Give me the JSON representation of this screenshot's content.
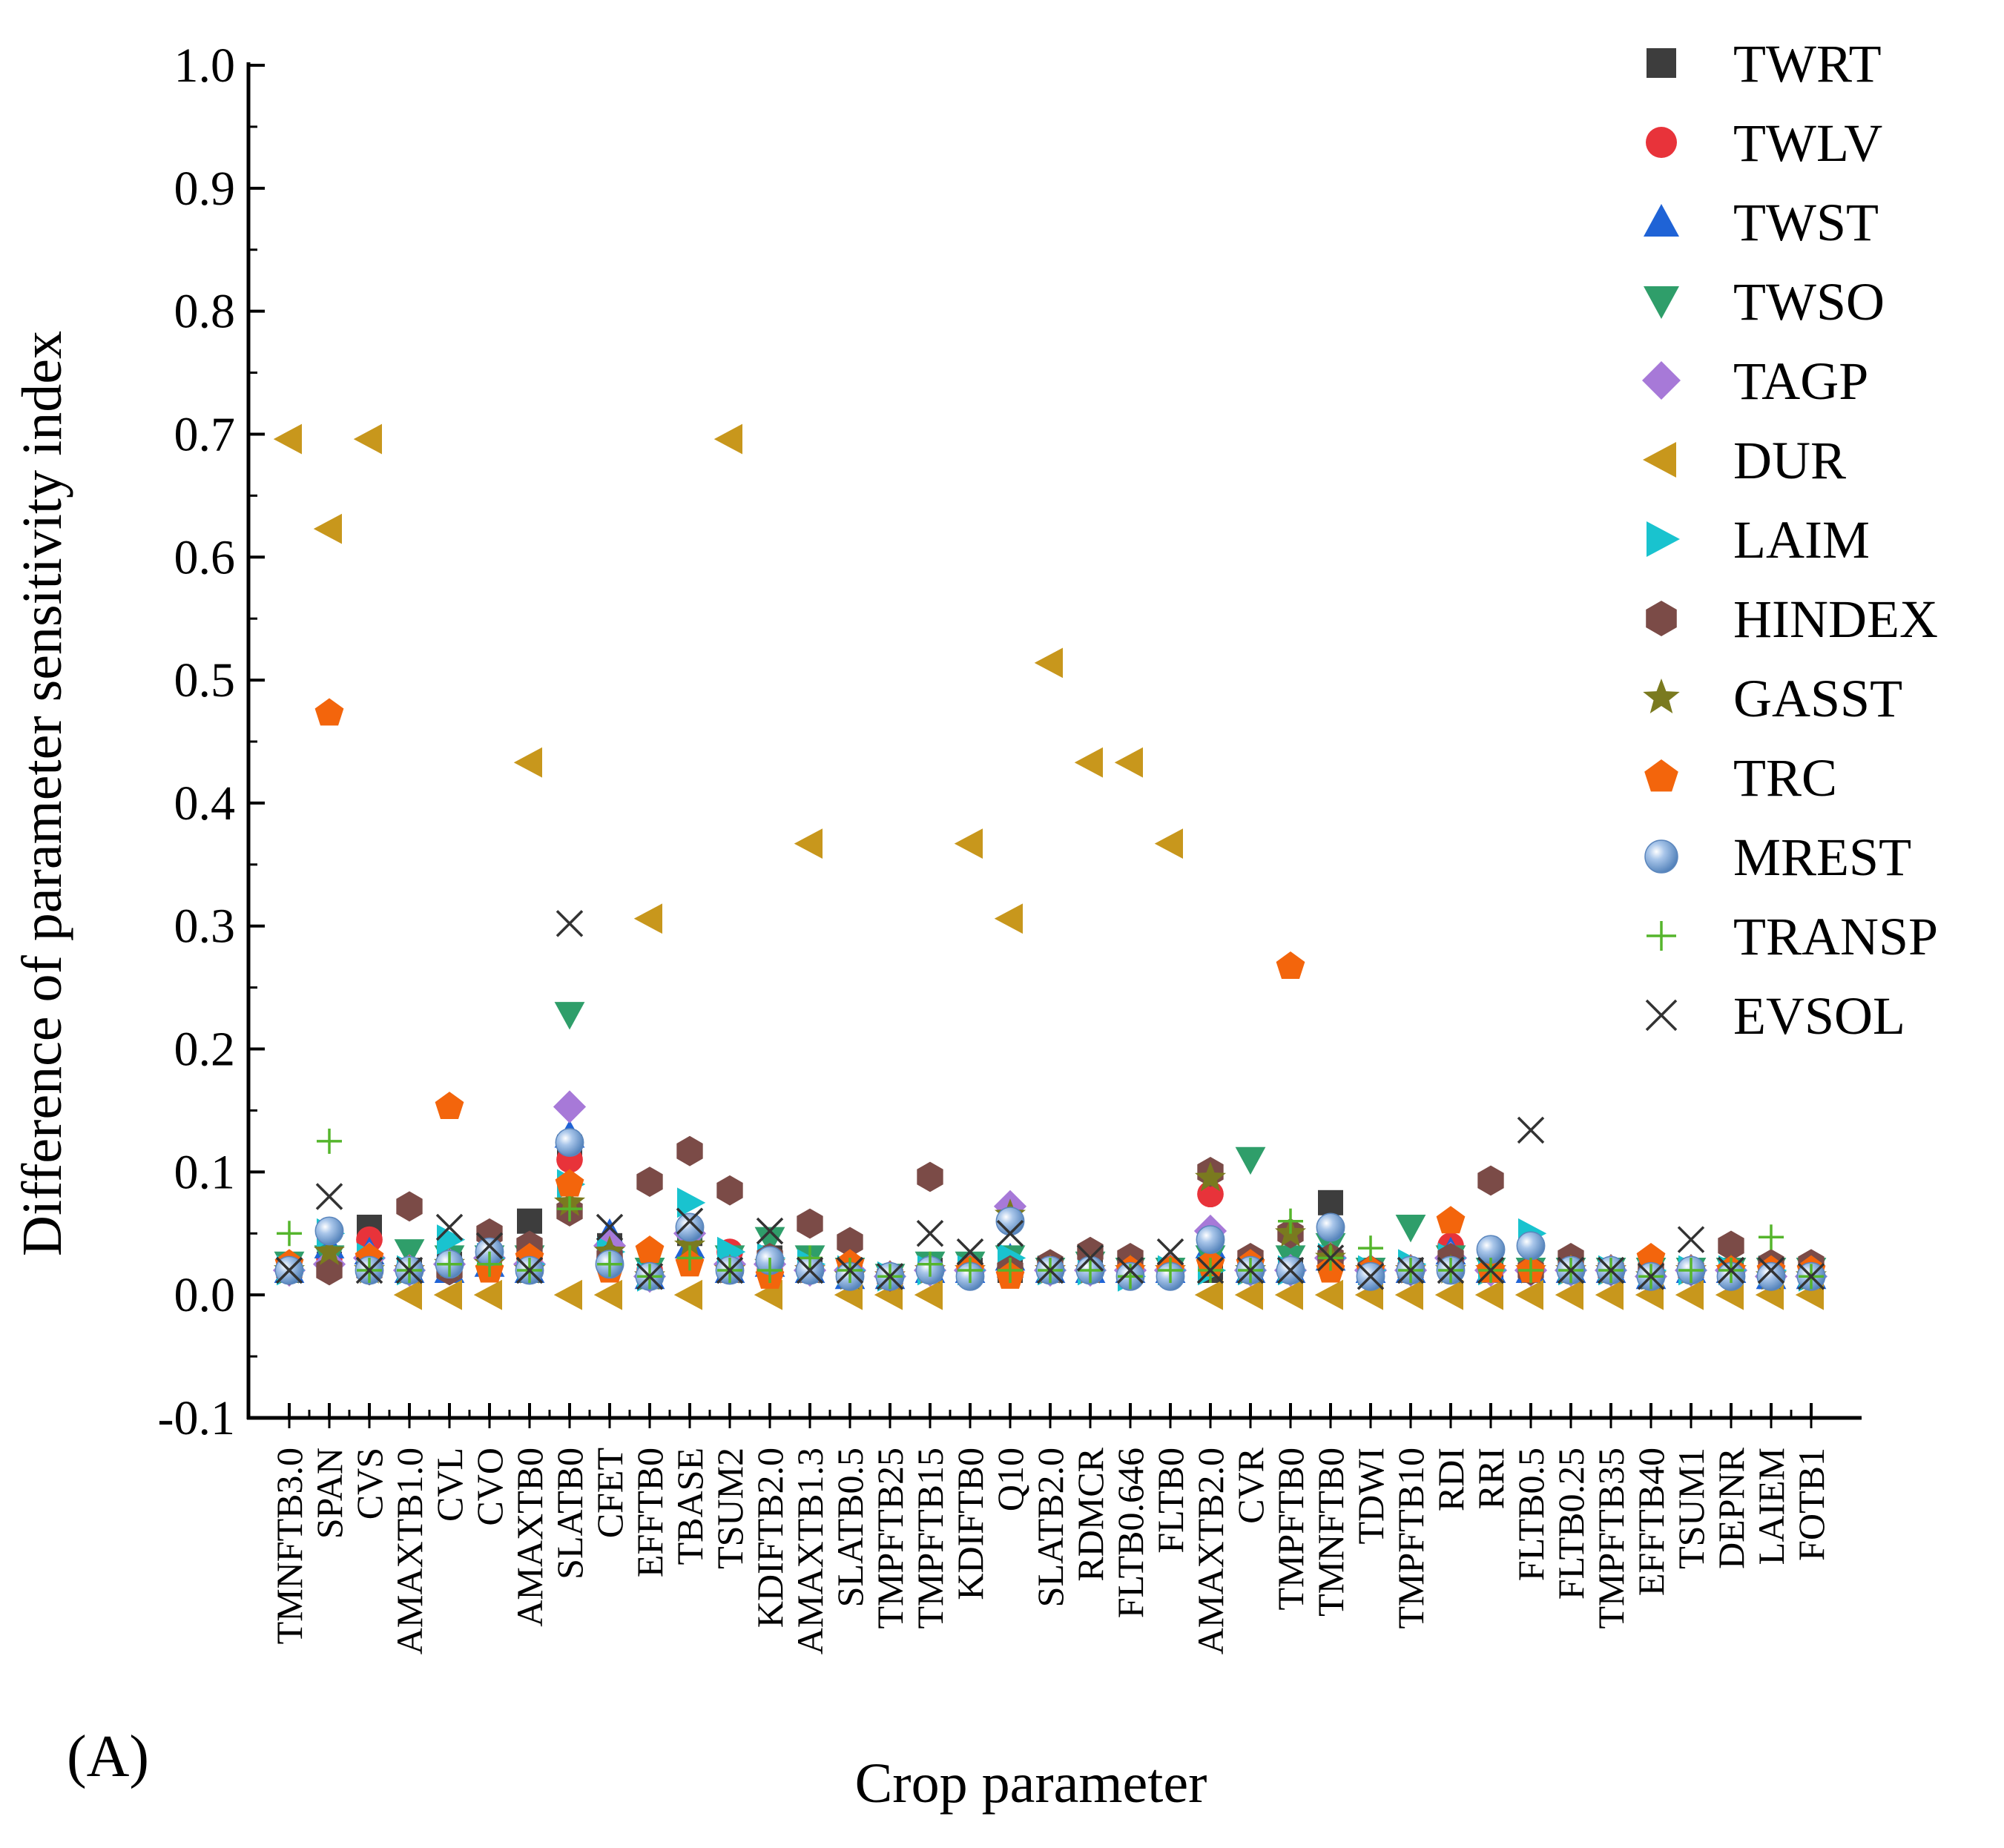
{
  "chart_data": {
    "type": "scatter",
    "xlabel": "Crop parameter",
    "ylabel": "Difference of parameter sensitivity index",
    "panel_label": "(A)",
    "ylim": [
      -0.1,
      1.0
    ],
    "yticks": [
      "-0.1",
      "0.0",
      "0.1",
      "0.2",
      "0.3",
      "0.4",
      "0.5",
      "0.6",
      "0.7",
      "0.8",
      "0.9",
      "1.0"
    ],
    "legend_position": "right",
    "categories": [
      "TMNFTB3.0",
      "SPAN",
      "CVS",
      "AMAXTB1.0",
      "CVL",
      "CVO",
      "AMAXTB0",
      "SLATB0",
      "CFET",
      "EFFTB0",
      "TBASE",
      "TSUM2",
      "KDIFTB2.0",
      "AMAXTB1.3",
      "SLATB0.5",
      "TMPFTB25",
      "TMPFTB15",
      "KDIFTB0",
      "Q10",
      "SLATB2.0",
      "RDMCR",
      "FLTB0.646",
      "FLTB0",
      "AMAXTB2.0",
      "CVR",
      "TMPFTB0",
      "TMNFTB0",
      "TDWI",
      "TMPFTB10",
      "RDI",
      "RRI",
      "FLTB0.5",
      "FLTB0.25",
      "TMPFTB35",
      "EFFTB40",
      "TSUM1",
      "DEPNR",
      "LAIEM",
      "FOTB1"
    ],
    "series": [
      {
        "name": "TWRT",
        "marker": "square",
        "color": "#3d3d3d",
        "values": [
          0.02,
          0.025,
          0.055,
          0.02,
          0.025,
          0.03,
          0.06,
          0.12,
          0.04,
          0.015,
          0.05,
          0.02,
          0.03,
          0.02,
          0.02,
          0.015,
          0.02,
          0.02,
          0.02,
          0.02,
          0.02,
          0.02,
          0.02,
          0.02,
          0.02,
          0.02,
          0.075,
          0.02,
          0.02,
          0.03,
          0.02,
          0.02,
          0.02,
          0.02,
          0.015,
          0.02,
          0.02,
          0.015,
          0.015
        ]
      },
      {
        "name": "TWLV",
        "marker": "circle",
        "color": "#e8333a",
        "values": [
          0.02,
          0.03,
          0.045,
          0.02,
          0.025,
          0.03,
          0.03,
          0.11,
          0.03,
          0.02,
          0.055,
          0.035,
          0.02,
          0.02,
          0.02,
          0.015,
          0.02,
          0.02,
          0.02,
          0.02,
          0.02,
          0.02,
          0.02,
          0.082,
          0.02,
          0.02,
          0.03,
          0.02,
          0.02,
          0.04,
          0.02,
          0.02,
          0.02,
          0.02,
          0.02,
          0.02,
          0.02,
          0.02,
          0.015
        ]
      },
      {
        "name": "TWST",
        "marker": "triangle-up",
        "color": "#1f63d6",
        "values": [
          0.02,
          0.04,
          0.035,
          0.02,
          0.02,
          0.025,
          0.02,
          0.13,
          0.05,
          0.015,
          0.04,
          0.02,
          0.025,
          0.02,
          0.015,
          0.015,
          0.02,
          0.02,
          0.03,
          0.02,
          0.02,
          0.02,
          0.02,
          0.04,
          0.02,
          0.02,
          0.03,
          0.02,
          0.02,
          0.035,
          0.02,
          0.02,
          0.02,
          0.02,
          0.015,
          0.02,
          0.02,
          0.015,
          0.015
        ]
      },
      {
        "name": "TWSO",
        "marker": "triangle-down",
        "color": "#2f9e6a",
        "values": [
          0.025,
          0.03,
          0.02,
          0.035,
          0.03,
          0.03,
          0.03,
          0.228,
          0.03,
          0.02,
          0.04,
          0.03,
          0.045,
          0.03,
          0.02,
          0.015,
          0.025,
          0.025,
          0.03,
          0.02,
          0.025,
          0.02,
          0.02,
          0.03,
          0.11,
          0.03,
          0.04,
          0.02,
          0.055,
          0.03,
          0.02,
          0.02,
          0.02,
          0.02,
          0.02,
          0.02,
          0.02,
          0.02,
          0.02
        ]
      },
      {
        "name": "TAGP",
        "marker": "diamond",
        "color": "#a779d8",
        "values": [
          0.02,
          0.025,
          0.03,
          0.02,
          0.025,
          0.03,
          0.025,
          0.153,
          0.04,
          0.015,
          0.05,
          0.025,
          0.025,
          0.02,
          0.02,
          0.015,
          0.02,
          0.02,
          0.072,
          0.02,
          0.02,
          0.02,
          0.02,
          0.052,
          0.02,
          0.02,
          0.03,
          0.02,
          0.02,
          0.03,
          0.02,
          0.02,
          0.02,
          0.02,
          0.015,
          0.02,
          0.02,
          0.015,
          0.015
        ]
      },
      {
        "name": "DUR",
        "marker": "triangle-left",
        "color": "#c8971c",
        "values": [
          0.696,
          0.623,
          0.696,
          0.0,
          0.0,
          0.0,
          0.433,
          0.0,
          0.0,
          0.306,
          0.0,
          0.696,
          0.0,
          0.367,
          0.0,
          0.0,
          0.0,
          0.367,
          0.306,
          0.514,
          0.433,
          0.433,
          0.367,
          0.0,
          0.0,
          0.0,
          0.0,
          0.0,
          0.0,
          0.0,
          0.0,
          0.0,
          0.0,
          0.0,
          0.0,
          0.0,
          0.0,
          0.0,
          0.0
        ]
      },
      {
        "name": "LAIM",
        "marker": "triangle-right",
        "color": "#19c3cf",
        "values": [
          0.02,
          0.05,
          0.03,
          0.02,
          0.045,
          0.03,
          0.025,
          0.09,
          0.035,
          0.015,
          0.075,
          0.035,
          0.03,
          0.025,
          0.02,
          0.015,
          0.02,
          0.02,
          0.03,
          0.02,
          0.02,
          0.015,
          0.02,
          0.02,
          0.02,
          0.02,
          0.03,
          0.02,
          0.025,
          0.03,
          0.02,
          0.05,
          0.02,
          0.02,
          0.02,
          0.02,
          0.02,
          0.02,
          0.015
        ]
      },
      {
        "name": "HINDEX",
        "marker": "hexagon",
        "color": "#7b4b47",
        "values": [
          0.02,
          0.02,
          0.02,
          0.072,
          0.02,
          0.05,
          0.04,
          0.068,
          0.03,
          0.092,
          0.117,
          0.085,
          0.03,
          0.058,
          0.043,
          0.015,
          0.096,
          0.02,
          0.02,
          0.025,
          0.035,
          0.03,
          0.02,
          0.1,
          0.03,
          0.05,
          0.03,
          0.02,
          0.02,
          0.03,
          0.093,
          0.02,
          0.03,
          0.02,
          0.02,
          0.02,
          0.04,
          0.025,
          0.025
        ]
      },
      {
        "name": "GASST",
        "marker": "star",
        "color": "#7a7a1f",
        "values": [
          0.02,
          0.035,
          0.02,
          0.02,
          0.025,
          0.025,
          0.02,
          0.075,
          0.035,
          0.015,
          0.04,
          0.02,
          0.025,
          0.02,
          0.015,
          0.015,
          0.02,
          0.02,
          0.065,
          0.02,
          0.02,
          0.02,
          0.02,
          0.095,
          0.02,
          0.05,
          0.03,
          0.02,
          0.02,
          0.02,
          0.02,
          0.02,
          0.02,
          0.02,
          0.015,
          0.02,
          0.02,
          0.015,
          0.015
        ]
      },
      {
        "name": "TRC",
        "marker": "pentagon",
        "color": "#f3650c",
        "values": [
          0.025,
          0.473,
          0.03,
          0.02,
          0.153,
          0.02,
          0.03,
          0.09,
          0.02,
          0.036,
          0.025,
          0.02,
          0.015,
          0.02,
          0.025,
          0.015,
          0.02,
          0.02,
          0.015,
          0.02,
          0.02,
          0.02,
          0.02,
          0.025,
          0.025,
          0.267,
          0.02,
          0.02,
          0.02,
          0.06,
          0.02,
          0.02,
          0.02,
          0.02,
          0.03,
          0.02,
          0.02,
          0.02,
          0.02
        ]
      },
      {
        "name": "MREST",
        "marker": "sphere",
        "color": "#6f9fd8",
        "values": [
          0.02,
          0.052,
          0.02,
          0.02,
          0.025,
          0.035,
          0.02,
          0.124,
          0.025,
          0.015,
          0.055,
          0.02,
          0.028,
          0.02,
          0.015,
          0.015,
          0.02,
          0.015,
          0.06,
          0.02,
          0.02,
          0.015,
          0.015,
          0.045,
          0.02,
          0.02,
          0.055,
          0.015,
          0.02,
          0.02,
          0.037,
          0.04,
          0.02,
          0.02,
          0.015,
          0.02,
          0.015,
          0.015,
          0.015
        ]
      },
      {
        "name": "TRANSP",
        "marker": "plus",
        "color": "#55b52c",
        "values": [
          0.05,
          0.125,
          0.02,
          0.02,
          0.025,
          0.025,
          0.02,
          0.07,
          0.025,
          0.015,
          0.03,
          0.02,
          0.02,
          0.03,
          0.02,
          0.015,
          0.025,
          0.02,
          0.02,
          0.02,
          0.02,
          0.015,
          0.02,
          0.02,
          0.02,
          0.06,
          0.03,
          0.038,
          0.02,
          0.02,
          0.02,
          0.02,
          0.02,
          0.02,
          0.015,
          0.02,
          0.02,
          0.047,
          0.015
        ]
      },
      {
        "name": "EVSOL",
        "marker": "cross",
        "color": "#333333",
        "values": [
          0.02,
          0.08,
          0.02,
          0.02,
          0.055,
          0.04,
          0.02,
          0.302,
          0.055,
          0.015,
          0.06,
          0.02,
          0.052,
          0.02,
          0.02,
          0.015,
          0.05,
          0.035,
          0.05,
          0.02,
          0.03,
          0.02,
          0.035,
          0.02,
          0.02,
          0.02,
          0.03,
          0.015,
          0.02,
          0.02,
          0.02,
          0.134,
          0.02,
          0.02,
          0.015,
          0.045,
          0.02,
          0.02,
          0.015
        ]
      }
    ]
  }
}
